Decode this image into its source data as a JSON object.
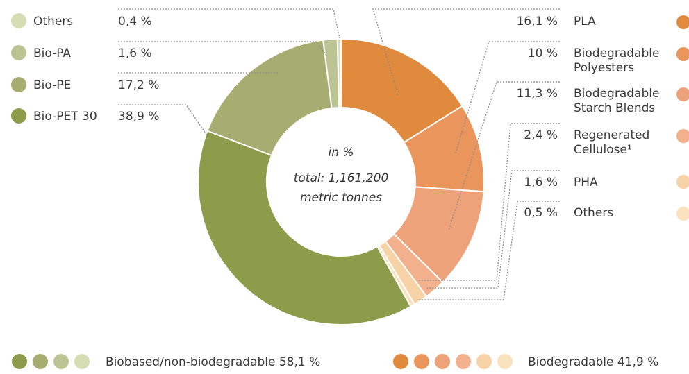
{
  "chart_data": {
    "type": "pie",
    "variant": "donut",
    "center_text": [
      "in %",
      "total: 1,161,200",
      "metric tonnes"
    ],
    "slices": [
      {
        "label": "PLA",
        "value": 16.1,
        "value_label": "16,1 %",
        "color": "#e08a3e",
        "group": "biodegradable"
      },
      {
        "label": "Biodegradable Polyesters",
        "lines": [
          "Biodegradable",
          "Polyesters"
        ],
        "value": 10,
        "value_label": "10 %",
        "color": "#e9955c",
        "group": "biodegradable"
      },
      {
        "label": "Biodegradable Starch Blends",
        "lines": [
          "Biodegradable",
          "Starch Blends"
        ],
        "value": 11.3,
        "value_label": "11,3 %",
        "color": "#eea27a",
        "group": "biodegradable"
      },
      {
        "label": "Regenerated Cellulose¹",
        "lines": [
          "Regenerated",
          "Cellulose¹"
        ],
        "value": 2.4,
        "value_label": "2,4 %",
        "color": "#f2b08c",
        "group": "biodegradable"
      },
      {
        "label": "PHA",
        "value": 1.6,
        "value_label": "1,6 %",
        "color": "#f7d2a6",
        "group": "biodegradable"
      },
      {
        "label": "Others",
        "value": 0.5,
        "value_label": "0,5 %",
        "color": "#f9e2bd",
        "group": "biodegradable"
      },
      {
        "label": "Bio-PET 30",
        "value": 38.9,
        "value_label": "38,9 %",
        "color": "#8d9c4a",
        "group": "biobased"
      },
      {
        "label": "Bio-PE",
        "value": 17.2,
        "value_label": "17,2 %",
        "color": "#a7ad70",
        "group": "biobased"
      },
      {
        "label": "Bio-PA",
        "value": 1.6,
        "value_label": "1,6 %",
        "color": "#bcc493",
        "group": "biobased"
      },
      {
        "label": "Others",
        "value": 0.4,
        "value_label": "0,4 %",
        "color": "#d6ddb4",
        "group": "biobased"
      }
    ],
    "legend_left": [
      {
        "label": "Others",
        "value_label": "0,4 %",
        "color": "#d6ddb4"
      },
      {
        "label": "Bio-PA",
        "value_label": "1,6 %",
        "color": "#bcc493"
      },
      {
        "label": "Bio-PE",
        "value_label": "17,2 %",
        "color": "#a7ad70"
      },
      {
        "label": "Bio-PET 30",
        "value_label": "38,9 %",
        "color": "#8d9c4a"
      }
    ],
    "group_legend": [
      {
        "label": "Biobased/non-biodegradable 58,1 %",
        "colors": [
          "#8d9c4a",
          "#a7ad70",
          "#bcc493",
          "#d6ddb4"
        ]
      },
      {
        "label": "Biodegradable 41,9 %",
        "colors": [
          "#e08a3e",
          "#e9955c",
          "#eea27a",
          "#f2b08c",
          "#f7d2a6",
          "#f9e2bd"
        ]
      }
    ]
  }
}
